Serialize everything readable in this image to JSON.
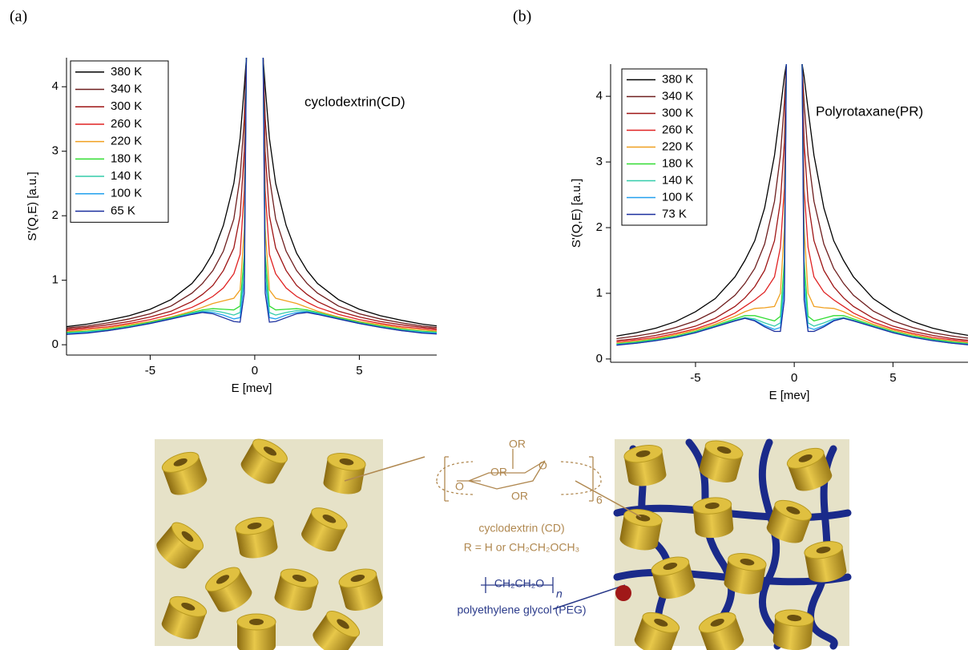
{
  "chart_data": [
    {
      "type": "line",
      "panel_label": "(a)",
      "annotation": "cyclodextrin(CD)",
      "x_label": "E [mev]",
      "y_label": "S'(Q,E) [a.u.]",
      "x": [
        -9,
        -8,
        -7,
        -6,
        -5,
        -4,
        -3,
        -2.5,
        -2,
        -1.5,
        -1,
        -0.7,
        -0.5,
        -0.4,
        0,
        0.4,
        0.5,
        0.7,
        1,
        1.5,
        2,
        2.5,
        3,
        4,
        5,
        6,
        7,
        8,
        9
      ],
      "xlim": [
        -9,
        8.7
      ],
      "ylim": [
        -0.16,
        4.45
      ],
      "xticks": [
        -5,
        0,
        5
      ],
      "yticks": [
        0,
        1,
        2,
        3,
        4
      ],
      "series": [
        {
          "name": "380 K",
          "color": "#000000",
          "values": [
            0.28,
            0.32,
            0.38,
            0.45,
            0.55,
            0.7,
            0.95,
            1.15,
            1.42,
            1.85,
            2.5,
            3.2,
            4.0,
            4.45,
            null,
            4.45,
            4.0,
            3.2,
            2.5,
            1.85,
            1.42,
            1.15,
            0.95,
            0.7,
            0.55,
            0.45,
            0.38,
            0.32,
            0.28
          ]
        },
        {
          "name": "340 K",
          "color": "#6e1e1e",
          "values": [
            0.26,
            0.29,
            0.34,
            0.4,
            0.48,
            0.6,
            0.8,
            0.95,
            1.15,
            1.45,
            1.95,
            2.6,
            3.5,
            4.45,
            null,
            4.45,
            3.5,
            2.6,
            1.95,
            1.45,
            1.15,
            0.95,
            0.8,
            0.6,
            0.48,
            0.4,
            0.34,
            0.29,
            0.26
          ]
        },
        {
          "name": "300 K",
          "color": "#9e1414",
          "values": [
            0.24,
            0.27,
            0.31,
            0.36,
            0.43,
            0.52,
            0.67,
            0.78,
            0.92,
            1.15,
            1.5,
            2.0,
            3.0,
            4.45,
            null,
            4.45,
            3.0,
            2.0,
            1.5,
            1.15,
            0.92,
            0.78,
            0.67,
            0.52,
            0.43,
            0.36,
            0.31,
            0.27,
            0.24
          ]
        },
        {
          "name": "260 K",
          "color": "#e02222",
          "values": [
            0.22,
            0.25,
            0.28,
            0.33,
            0.39,
            0.47,
            0.58,
            0.66,
            0.75,
            0.88,
            1.1,
            1.4,
            2.4,
            4.45,
            null,
            4.45,
            2.4,
            1.4,
            1.1,
            0.88,
            0.75,
            0.66,
            0.58,
            0.47,
            0.39,
            0.33,
            0.28,
            0.25,
            0.22
          ]
        },
        {
          "name": "220 K",
          "color": "#f0a020",
          "values": [
            0.2,
            0.23,
            0.26,
            0.31,
            0.36,
            0.43,
            0.52,
            0.58,
            0.64,
            0.68,
            0.72,
            0.85,
            1.8,
            4.45,
            null,
            4.45,
            1.8,
            0.85,
            0.72,
            0.68,
            0.64,
            0.58,
            0.52,
            0.43,
            0.36,
            0.31,
            0.26,
            0.23,
            0.2
          ]
        },
        {
          "name": "180 K",
          "color": "#33dd33",
          "values": [
            0.19,
            0.21,
            0.24,
            0.29,
            0.35,
            0.42,
            0.5,
            0.54,
            0.56,
            0.55,
            0.54,
            0.6,
            1.4,
            4.45,
            null,
            4.45,
            1.4,
            0.6,
            0.54,
            0.55,
            0.56,
            0.54,
            0.5,
            0.42,
            0.35,
            0.29,
            0.24,
            0.21,
            0.19
          ]
        },
        {
          "name": "140 K",
          "color": "#33ccaa",
          "values": [
            0.18,
            0.2,
            0.23,
            0.28,
            0.34,
            0.41,
            0.49,
            0.52,
            0.53,
            0.5,
            0.46,
            0.5,
            1.2,
            4.45,
            null,
            4.45,
            1.2,
            0.5,
            0.46,
            0.5,
            0.53,
            0.52,
            0.49,
            0.41,
            0.34,
            0.28,
            0.23,
            0.2,
            0.18
          ]
        },
        {
          "name": "100 K",
          "color": "#22a0ee",
          "values": [
            0.17,
            0.19,
            0.22,
            0.27,
            0.33,
            0.4,
            0.48,
            0.51,
            0.5,
            0.46,
            0.4,
            0.42,
            1.0,
            4.45,
            null,
            4.45,
            1.0,
            0.42,
            0.4,
            0.46,
            0.5,
            0.51,
            0.48,
            0.4,
            0.33,
            0.27,
            0.22,
            0.19,
            0.17
          ]
        },
        {
          "name": "65 K",
          "color": "#1a2f9e",
          "values": [
            0.16,
            0.18,
            0.22,
            0.27,
            0.33,
            0.4,
            0.47,
            0.5,
            0.48,
            0.42,
            0.36,
            0.35,
            0.8,
            4.45,
            null,
            4.45,
            0.8,
            0.35,
            0.36,
            0.42,
            0.48,
            0.5,
            0.47,
            0.4,
            0.33,
            0.27,
            0.22,
            0.18,
            0.16
          ]
        }
      ]
    },
    {
      "type": "line",
      "panel_label": "(b)",
      "annotation": "Polyrotaxane(PR)",
      "x_label": "E [mev]",
      "y_label": "S'(Q,E) [a.u.]",
      "x": [
        -9,
        -8,
        -7,
        -6,
        -5,
        -4,
        -3,
        -2.5,
        -2,
        -1.5,
        -1,
        -0.7,
        -0.5,
        -0.4,
        0,
        0.4,
        0.5,
        0.7,
        1,
        1.5,
        2,
        2.5,
        3,
        4,
        5,
        6,
        7,
        8,
        9
      ],
      "xlim": [
        -9.3,
        8.8
      ],
      "ylim": [
        -0.05,
        4.49
      ],
      "xticks": [
        -5,
        0,
        5
      ],
      "yticks": [
        0,
        1,
        2,
        3,
        4
      ],
      "series": [
        {
          "name": "380 K",
          "color": "#000000",
          "values": [
            0.35,
            0.4,
            0.47,
            0.57,
            0.72,
            0.92,
            1.25,
            1.5,
            1.8,
            2.3,
            3.1,
            3.8,
            4.3,
            4.49,
            null,
            4.49,
            4.3,
            3.8,
            3.1,
            2.3,
            1.8,
            1.5,
            1.25,
            0.92,
            0.72,
            0.57,
            0.47,
            0.4,
            0.35
          ]
        },
        {
          "name": "340 K",
          "color": "#6e1e1e",
          "values": [
            0.31,
            0.35,
            0.4,
            0.48,
            0.58,
            0.73,
            0.97,
            1.15,
            1.38,
            1.75,
            2.4,
            3.1,
            3.9,
            4.49,
            null,
            4.49,
            3.9,
            3.1,
            2.4,
            1.75,
            1.38,
            1.15,
            0.97,
            0.73,
            0.58,
            0.48,
            0.4,
            0.35,
            0.31
          ]
        },
        {
          "name": "300 K",
          "color": "#9e1414",
          "values": [
            0.28,
            0.31,
            0.36,
            0.42,
            0.5,
            0.62,
            0.8,
            0.93,
            1.1,
            1.35,
            1.8,
            2.4,
            3.3,
            4.49,
            null,
            4.49,
            3.3,
            2.4,
            1.8,
            1.35,
            1.1,
            0.93,
            0.8,
            0.62,
            0.5,
            0.42,
            0.36,
            0.31,
            0.28
          ]
        },
        {
          "name": "260 K",
          "color": "#e02222",
          "values": [
            0.26,
            0.29,
            0.33,
            0.39,
            0.46,
            0.56,
            0.7,
            0.8,
            0.9,
            1.02,
            1.25,
            1.7,
            2.6,
            4.49,
            null,
            4.49,
            2.6,
            1.7,
            1.25,
            1.02,
            0.9,
            0.8,
            0.7,
            0.56,
            0.46,
            0.39,
            0.33,
            0.29,
            0.26
          ]
        },
        {
          "name": "220 K",
          "color": "#f0a020",
          "values": [
            0.24,
            0.27,
            0.31,
            0.37,
            0.44,
            0.53,
            0.65,
            0.72,
            0.77,
            0.78,
            0.8,
            1.0,
            2.0,
            4.49,
            null,
            4.49,
            2.0,
            1.0,
            0.8,
            0.78,
            0.77,
            0.72,
            0.65,
            0.53,
            0.44,
            0.37,
            0.31,
            0.27,
            0.24
          ]
        },
        {
          "name": "180 K",
          "color": "#33dd33",
          "values": [
            0.23,
            0.26,
            0.3,
            0.35,
            0.42,
            0.51,
            0.61,
            0.66,
            0.66,
            0.62,
            0.58,
            0.65,
            1.5,
            4.49,
            null,
            4.49,
            1.5,
            0.65,
            0.58,
            0.62,
            0.66,
            0.66,
            0.61,
            0.51,
            0.42,
            0.35,
            0.3,
            0.26,
            0.23
          ]
        },
        {
          "name": "140 K",
          "color": "#33ccaa",
          "values": [
            0.22,
            0.25,
            0.29,
            0.34,
            0.41,
            0.5,
            0.59,
            0.63,
            0.61,
            0.55,
            0.5,
            0.55,
            1.3,
            4.49,
            null,
            4.49,
            1.3,
            0.55,
            0.5,
            0.55,
            0.61,
            0.63,
            0.59,
            0.5,
            0.41,
            0.34,
            0.29,
            0.25,
            0.22
          ]
        },
        {
          "name": "100 K",
          "color": "#22a0ee",
          "values": [
            0.22,
            0.24,
            0.28,
            0.33,
            0.4,
            0.49,
            0.58,
            0.62,
            0.59,
            0.51,
            0.45,
            0.48,
            1.1,
            4.49,
            null,
            4.49,
            1.1,
            0.48,
            0.45,
            0.51,
            0.59,
            0.62,
            0.58,
            0.49,
            0.4,
            0.33,
            0.28,
            0.24,
            0.22
          ]
        },
        {
          "name": "73 K",
          "color": "#1a2f9e",
          "values": [
            0.21,
            0.24,
            0.28,
            0.33,
            0.4,
            0.49,
            0.58,
            0.62,
            0.58,
            0.49,
            0.42,
            0.42,
            0.9,
            4.49,
            null,
            4.49,
            0.9,
            0.42,
            0.42,
            0.49,
            0.58,
            0.62,
            0.58,
            0.49,
            0.4,
            0.33,
            0.28,
            0.24,
            0.21
          ]
        }
      ]
    }
  ],
  "illustration": {
    "substituents": [
      "OR",
      "OR",
      "OR"
    ],
    "ring_oxygens": [
      "O",
      "O"
    ],
    "repeat": "6",
    "cd_label": "cyclodextrin (CD)",
    "r_label": "R = H or CH₂CH₂OCH₃",
    "peg_formula": "CH₂CH₂O",
    "peg_n": "n",
    "peg_label": "polyethylene glycol (PEG)"
  }
}
